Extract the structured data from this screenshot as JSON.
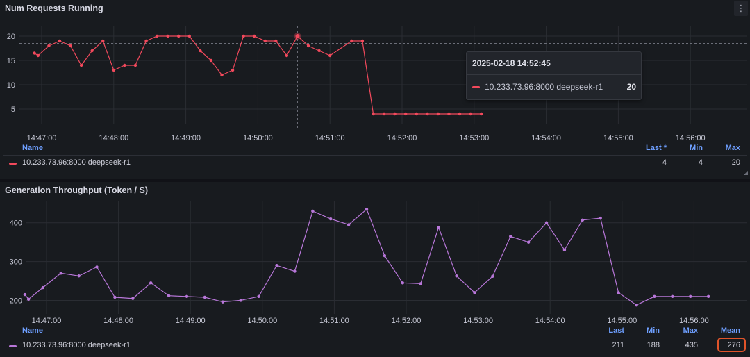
{
  "panels": [
    {
      "title": "Num Requests Running",
      "menu_icon": "kebab-menu-icon",
      "color": "#f2495c",
      "chart_data": {
        "type": "line",
        "x_ticks": [
          "14:47:00",
          "14:48:00",
          "14:49:00",
          "14:50:00",
          "14:51:00",
          "14:52:00",
          "14:53:00",
          "14:54:00",
          "14:55:00",
          "14:56:00"
        ],
        "y_ticks": [
          5,
          10,
          15,
          20
        ],
        "ylim": [
          2,
          22
        ],
        "grid": true,
        "series": [
          {
            "name": "10.233.73.96:8000 deepseek-r1",
            "x": [
              -0.1,
              -0.05,
              0.1,
              0.25,
              0.4,
              0.55,
              0.7,
              0.85,
              1.0,
              1.15,
              1.3,
              1.45,
              1.6,
              1.75,
              1.9,
              2.05,
              2.2,
              2.35,
              2.5,
              2.65,
              2.8,
              2.95,
              3.1,
              3.25,
              3.4,
              3.55,
              3.7,
              3.85,
              4.0,
              4.3,
              4.45,
              4.6,
              4.75,
              4.9,
              5.05,
              5.2,
              5.35,
              5.5,
              5.65,
              5.8,
              5.95,
              6.1
            ],
            "values": [
              16.5,
              16,
              18,
              19,
              18,
              14,
              17,
              19,
              13,
              14,
              14,
              19,
              20,
              20,
              20,
              20,
              17,
              15,
              12,
              13,
              20,
              20,
              19,
              19,
              16,
              20,
              18,
              17,
              16,
              19,
              19,
              4,
              4,
              4,
              4,
              4,
              4,
              4,
              4,
              4,
              4,
              4
            ]
          }
        ],
        "hover_reference": 18.5,
        "hover_point_index": 25
      },
      "tooltip": {
        "time": "2025-02-18 14:52:45",
        "label": "10.233.73.96:8000 deepseek-r1",
        "value": "20"
      },
      "legend": {
        "header": {
          "name": "Name",
          "c1": "Last *",
          "c2": "Min",
          "c3": "Max"
        },
        "rows": [
          {
            "name": "10.233.73.96:8000 deepseek-r1",
            "c1": "4",
            "c2": "4",
            "c3": "20"
          }
        ]
      }
    },
    {
      "title": "Generation Throughput (Token / S)",
      "color": "#b877d9",
      "chart_data": {
        "type": "line",
        "x_ticks": [
          "14:47:00",
          "14:48:00",
          "14:49:00",
          "14:50:00",
          "14:51:00",
          "14:52:00",
          "14:53:00",
          "14:54:00",
          "14:55:00",
          "14:56:00"
        ],
        "y_ticks": [
          200,
          300,
          400
        ],
        "ylim": [
          165,
          455
        ],
        "grid": true,
        "series": [
          {
            "name": "10.233.73.96:8000 deepseek-r1",
            "x": [
              -0.3,
              -0.25,
              -0.05,
              0.2,
              0.45,
              0.7,
              0.95,
              1.2,
              1.45,
              1.7,
              1.95,
              2.2,
              2.45,
              2.7,
              2.95,
              3.2,
              3.45,
              3.7,
              3.95,
              4.2,
              4.45,
              4.7,
              4.95,
              5.2,
              5.45,
              5.7,
              5.95,
              6.2,
              6.45,
              6.7,
              6.95,
              7.2,
              7.45,
              7.7,
              7.95,
              8.2,
              8.45,
              8.7,
              8.95,
              9.2
            ],
            "values": [
              215,
              203,
              233,
              270,
              263,
              286,
              208,
              205,
              245,
              212,
              210,
              208,
              196,
              200,
              210,
              290,
              275,
              430,
              410,
              395,
              435,
              315,
              245,
              243,
              388,
              263,
              220,
              262,
              365,
              350,
              400,
              330,
              407,
              412,
              220,
              188,
              210,
              210,
              210,
              210
            ]
          }
        ]
      },
      "legend": {
        "header": {
          "name": "Name",
          "c1": "Last",
          "c2": "Min",
          "c3": "Max",
          "c4": "Mean"
        },
        "rows": [
          {
            "name": "10.233.73.96:8000 deepseek-r1",
            "c1": "211",
            "c2": "188",
            "c3": "435",
            "c4": "276"
          }
        ]
      }
    }
  ]
}
